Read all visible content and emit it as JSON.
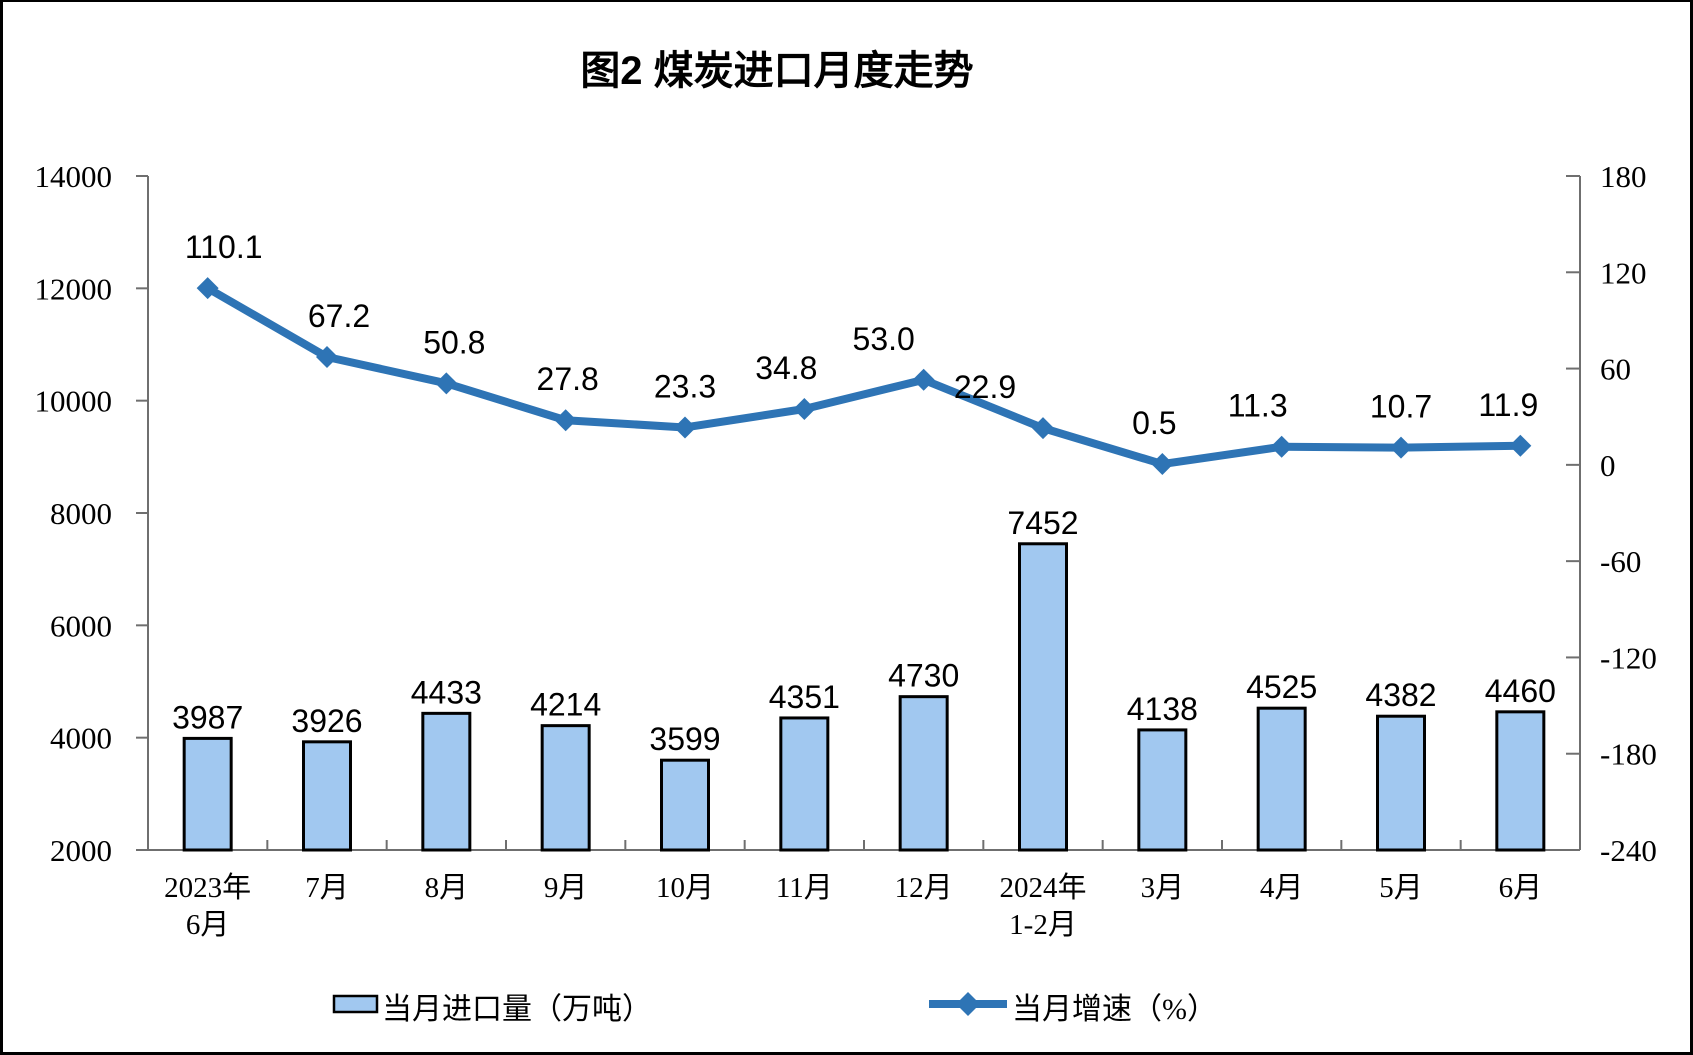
{
  "chart_data": {
    "type": "combo_bar_line",
    "title": "图2  煤炭进口月度走势",
    "categories": [
      {
        "line1": "2023年",
        "line2": "6月"
      },
      {
        "line1": "7月"
      },
      {
        "line1": "8月"
      },
      {
        "line1": "9月"
      },
      {
        "line1": "10月"
      },
      {
        "line1": "11月"
      },
      {
        "line1": "12月"
      },
      {
        "line1": "2024年",
        "line2": "1-2月"
      },
      {
        "line1": "3月"
      },
      {
        "line1": "4月"
      },
      {
        "line1": "5月"
      },
      {
        "line1": "6月"
      }
    ],
    "series": [
      {
        "name": "当月进口量（万吨）",
        "type": "bar",
        "axis": "left",
        "color": "#A1C8F0",
        "border_color": "#000000",
        "values": [
          3987,
          3926,
          4433,
          4214,
          3599,
          4351,
          4730,
          7452,
          4138,
          4525,
          4382,
          4460
        ],
        "labels": [
          "3987",
          "3926",
          "4433",
          "4214",
          "3599",
          "4351",
          "4730",
          "7452",
          "4138",
          "4525",
          "4382",
          "4460"
        ]
      },
      {
        "name": "当月增速（%）",
        "type": "line",
        "axis": "right",
        "color": "#2E74B5",
        "marker": "diamond",
        "values": [
          110.1,
          67.2,
          50.8,
          27.8,
          23.3,
          34.8,
          53.0,
          22.9,
          0.5,
          11.3,
          10.7,
          11.9
        ],
        "labels": [
          "110.1",
          "67.2",
          "50.8",
          "27.8",
          "23.3",
          "34.8",
          "53.0",
          "22.9",
          "0.5",
          "11.3",
          "10.7",
          "11.9"
        ]
      }
    ],
    "left_axis": {
      "min": 2000,
      "max": 14000,
      "step": 2000,
      "tick_labels": [
        "2000",
        "4000",
        "6000",
        "8000",
        "10000",
        "12000",
        "14000"
      ]
    },
    "right_axis": {
      "min": -240,
      "max": 180,
      "step": 60,
      "tick_labels": [
        "-240",
        "-180",
        "-120",
        "-60",
        "0",
        "60",
        "120",
        "180"
      ]
    },
    "grid": false,
    "legend_position": "bottom"
  },
  "legend": {
    "bar_label": "当月进口量（万吨）",
    "line_label": "当月增速（%）"
  }
}
